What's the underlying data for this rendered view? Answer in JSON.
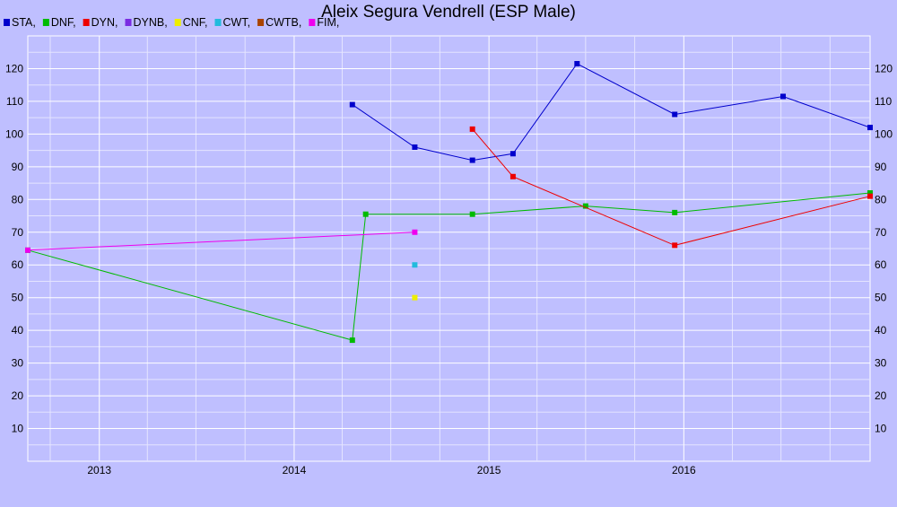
{
  "chart_data": {
    "type": "line",
    "title": "Aleix Segura Vendrell (ESP Male)",
    "xlabel": "",
    "ylabel": "",
    "x_range": [
      "2012-08-20",
      "2016-12-15"
    ],
    "ylim": [
      0,
      130
    ],
    "y_ticks": [
      10,
      20,
      30,
      40,
      50,
      60,
      70,
      80,
      90,
      100,
      110,
      120
    ],
    "x_ticks": [
      "2013",
      "2014",
      "2015",
      "2016"
    ],
    "grid": true,
    "legend_position": "top-left",
    "legend": [
      {
        "label": "STA,",
        "color": "#0000cc"
      },
      {
        "label": "DNF,",
        "color": "#00bb00"
      },
      {
        "label": "DYN,",
        "color": "#ee0000"
      },
      {
        "label": "DYNB,",
        "color": "#7a2be2"
      },
      {
        "label": "CNF,",
        "color": "#eeee00"
      },
      {
        "label": "CWT,",
        "color": "#22bbdd"
      },
      {
        "label": "CWTB,",
        "color": "#aa4400"
      },
      {
        "label": "FIM,",
        "color": "#ee00ee"
      }
    ],
    "series": [
      {
        "name": "STA",
        "color": "#0000cc",
        "points": [
          {
            "x": "2014-04-20",
            "y": 109
          },
          {
            "x": "2014-08-15",
            "y": 96
          },
          {
            "x": "2014-12-01",
            "y": 92
          },
          {
            "x": "2015-02-15",
            "y": 94
          },
          {
            "x": "2015-06-15",
            "y": 121.5
          },
          {
            "x": "2015-12-15",
            "y": 106
          },
          {
            "x": "2016-07-05",
            "y": 111.5
          },
          {
            "x": "2016-12-15",
            "y": 102
          }
        ]
      },
      {
        "name": "DNF",
        "color": "#00bb00",
        "points": [
          {
            "x": "2012-08-20",
            "y": 64.5
          },
          {
            "x": "2014-04-20",
            "y": 37
          },
          {
            "x": "2014-05-15",
            "y": 75.5
          },
          {
            "x": "2014-12-01",
            "y": 75.5
          },
          {
            "x": "2015-07-01",
            "y": 78
          },
          {
            "x": "2015-12-15",
            "y": 76
          },
          {
            "x": "2016-12-15",
            "y": 82
          }
        ]
      },
      {
        "name": "DYN",
        "color": "#ee0000",
        "points": [
          {
            "x": "2014-12-01",
            "y": 101.5
          },
          {
            "x": "2015-02-15",
            "y": 87
          },
          {
            "x": "2015-12-15",
            "y": 66
          },
          {
            "x": "2016-12-15",
            "y": 81
          }
        ]
      },
      {
        "name": "CNF",
        "color": "#eeee00",
        "points": [
          {
            "x": "2014-08-15",
            "y": 50
          }
        ]
      },
      {
        "name": "CWT",
        "color": "#22bbdd",
        "points": [
          {
            "x": "2014-08-15",
            "y": 60
          }
        ]
      },
      {
        "name": "FIM",
        "color": "#ee00ee",
        "points": [
          {
            "x": "2012-08-20",
            "y": 64.5
          },
          {
            "x": "2014-08-15",
            "y": 70
          }
        ]
      }
    ]
  }
}
